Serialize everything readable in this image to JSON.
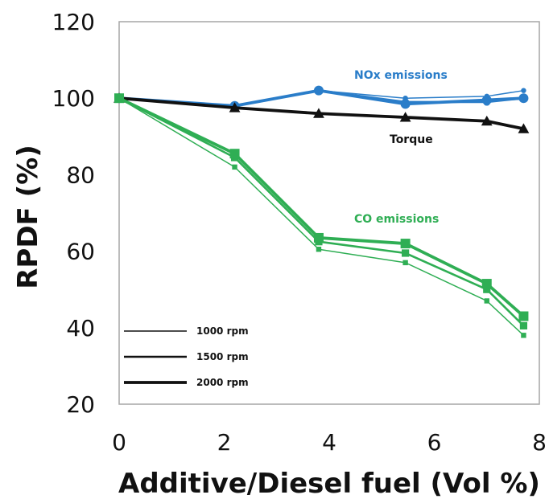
{
  "chart_data": {
    "type": "line",
    "xlabel": "Additive/Diesel fuel (Vol %)",
    "ylabel": "RPDF (%)",
    "xlim": [
      0,
      8
    ],
    "ylim": [
      20,
      120
    ],
    "x_ticks": [
      "0",
      "2",
      "4",
      "6",
      "8"
    ],
    "y_ticks": [
      "20",
      "40",
      "60",
      "80",
      "100",
      "120"
    ],
    "grid": false,
    "x": [
      0,
      2.2,
      3.8,
      5.45,
      7.0,
      7.7
    ],
    "annotations": [
      {
        "text": "NOx emissions",
        "color": "#2a7dc9"
      },
      {
        "text": "Torque",
        "color": "#111111"
      },
      {
        "text": "CO emissions",
        "color": "#2fae54"
      }
    ],
    "legend": {
      "placement": "bottom-left",
      "entries": [
        {
          "label": "1000 rpm"
        },
        {
          "label": "1500 rpm"
        },
        {
          "label": "2000 rpm"
        }
      ]
    },
    "series_groups": [
      {
        "group": "NOx emissions",
        "color": "#2a7dc9",
        "marker": "circle",
        "series": [
          {
            "rpm": "1000 rpm",
            "values": [
              100,
              98,
              102,
              100,
              100.5,
              102
            ]
          },
          {
            "rpm": "1500 rpm",
            "values": [
              100,
              98,
              102,
              99,
              99,
              100
            ]
          },
          {
            "rpm": "2000 rpm",
            "values": [
              100,
              98,
              102,
              98.5,
              99.5,
              100
            ]
          }
        ]
      },
      {
        "group": "Torque",
        "color": "#111111",
        "marker": "triangle",
        "series": [
          {
            "rpm": "2000 rpm",
            "values": [
              100,
              97.5,
              96,
              95,
              94,
              92
            ]
          }
        ]
      },
      {
        "group": "CO emissions",
        "color": "#2fae54",
        "marker": "square",
        "series": [
          {
            "rpm": "1000 rpm",
            "values": [
              100,
              82,
              60.5,
              57,
              47,
              38
            ]
          },
          {
            "rpm": "1500 rpm",
            "values": [
              100,
              84.5,
              62.5,
              59.5,
              50,
              40.5
            ]
          },
          {
            "rpm": "2000 rpm",
            "values": [
              100,
              85.5,
              63.5,
              62,
              51.5,
              43
            ]
          }
        ]
      }
    ]
  }
}
